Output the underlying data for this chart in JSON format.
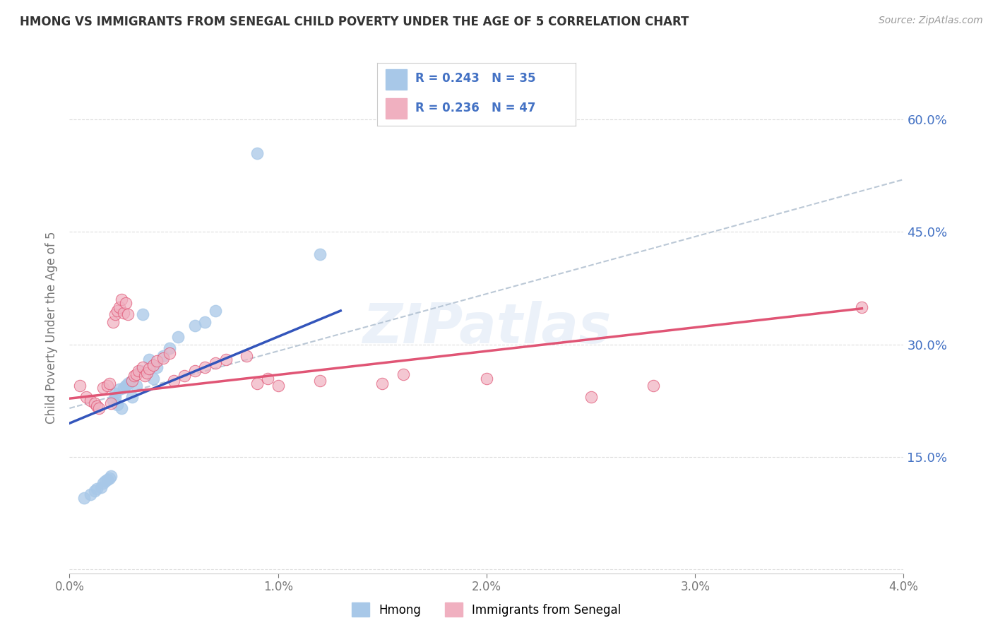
{
  "title": "HMONG VS IMMIGRANTS FROM SENEGAL CHILD POVERTY UNDER THE AGE OF 5 CORRELATION CHART",
  "source": "Source: ZipAtlas.com",
  "ylabel": "Child Poverty Under the Age of 5",
  "legend_label1": "Hmong",
  "legend_label2": "Immigrants from Senegal",
  "R1": 0.243,
  "N1": 35,
  "R2": 0.236,
  "N2": 47,
  "color_blue": "#A8C8E8",
  "color_pink": "#F0B0C0",
  "color_blue_line": "#3355BB",
  "color_pink_line": "#E05575",
  "color_gray_dashed": "#AABBCC",
  "color_text_blue": "#4472C4",
  "xlim": [
    0.0,
    0.04
  ],
  "ylim": [
    -0.005,
    0.65
  ],
  "x_ticks": [
    0.0,
    0.01,
    0.02,
    0.03,
    0.04
  ],
  "x_tick_labels": [
    "0.0%",
    "1.0%",
    "2.0%",
    "3.0%",
    "4.0%"
  ],
  "y_ticks": [
    0.0,
    0.15,
    0.3,
    0.45,
    0.6
  ],
  "y_tick_labels": [
    "",
    "15.0%",
    "30.0%",
    "45.0%",
    "60.0%"
  ],
  "hmong_x": [
    0.0007,
    0.001,
    0.0012,
    0.0013,
    0.0015,
    0.0016,
    0.0017,
    0.0018,
    0.0019,
    0.002,
    0.0021,
    0.0022,
    0.0022,
    0.0023,
    0.0024,
    0.0025,
    0.0026,
    0.0027,
    0.0028,
    0.0029,
    0.003,
    0.0032,
    0.0034,
    0.0035,
    0.0038,
    0.004,
    0.0042,
    0.0045,
    0.0048,
    0.0052,
    0.006,
    0.0065,
    0.007,
    0.009,
    0.012
  ],
  "hmong_y": [
    0.095,
    0.1,
    0.105,
    0.108,
    0.11,
    0.115,
    0.118,
    0.12,
    0.122,
    0.125,
    0.225,
    0.23,
    0.235,
    0.22,
    0.24,
    0.215,
    0.242,
    0.245,
    0.248,
    0.25,
    0.23,
    0.245,
    0.265,
    0.34,
    0.28,
    0.255,
    0.27,
    0.285,
    0.295,
    0.31,
    0.325,
    0.33,
    0.345,
    0.555,
    0.42
  ],
  "senegal_x": [
    0.0005,
    0.0008,
    0.001,
    0.0012,
    0.0013,
    0.0014,
    0.0016,
    0.0018,
    0.0019,
    0.002,
    0.0021,
    0.0022,
    0.0023,
    0.0024,
    0.0025,
    0.0026,
    0.0027,
    0.0028,
    0.003,
    0.0031,
    0.0032,
    0.0033,
    0.0035,
    0.0036,
    0.0037,
    0.0038,
    0.004,
    0.0042,
    0.0045,
    0.0048,
    0.005,
    0.0055,
    0.006,
    0.0065,
    0.007,
    0.0075,
    0.0085,
    0.009,
    0.0095,
    0.01,
    0.012,
    0.015,
    0.016,
    0.02,
    0.025,
    0.028,
    0.038
  ],
  "senegal_y": [
    0.245,
    0.23,
    0.225,
    0.222,
    0.218,
    0.215,
    0.242,
    0.245,
    0.248,
    0.222,
    0.33,
    0.34,
    0.345,
    0.35,
    0.36,
    0.342,
    0.355,
    0.34,
    0.252,
    0.258,
    0.26,
    0.265,
    0.27,
    0.258,
    0.262,
    0.268,
    0.272,
    0.278,
    0.282,
    0.288,
    0.252,
    0.258,
    0.265,
    0.27,
    0.275,
    0.28,
    0.285,
    0.248,
    0.255,
    0.245,
    0.252,
    0.248,
    0.26,
    0.255,
    0.23,
    0.245,
    0.35
  ],
  "bg_color": "#FFFFFF",
  "grid_color": "#DDDDDD",
  "gray_line_x0": 0.0,
  "gray_line_x1": 0.04,
  "gray_line_y0": 0.215,
  "gray_line_y1": 0.52,
  "blue_line_x0": 0.0,
  "blue_line_x1": 0.013,
  "blue_line_y0": 0.195,
  "blue_line_y1": 0.345,
  "pink_line_x0": 0.0,
  "pink_line_x1": 0.038,
  "pink_line_y0": 0.228,
  "pink_line_y1": 0.348
}
